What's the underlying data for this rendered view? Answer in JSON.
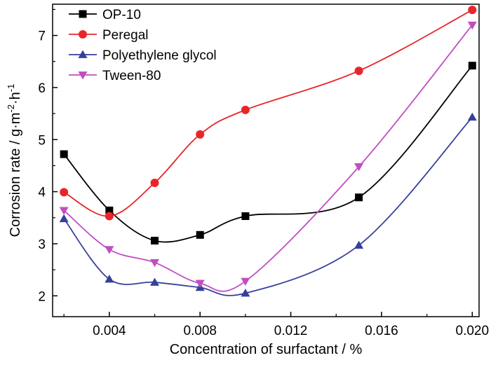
{
  "chart_data": {
    "type": "line",
    "xlabel": "Concentration of surfactant / %",
    "ylabel": {
      "prefix": "Corrosion rate / g·m",
      "exp1": "-2",
      "mid": "·h",
      "exp2": "-1"
    },
    "xlim": [
      0.0015,
      0.0203
    ],
    "ylim": [
      1.6,
      7.6
    ],
    "xticks": [
      0.004,
      0.008,
      0.012,
      0.016,
      0.02
    ],
    "xtick_labels": [
      "0.004",
      "0.008",
      "0.012",
      "0.016",
      "0.020"
    ],
    "yticks": [
      2,
      3,
      4,
      5,
      6,
      7
    ],
    "ytick_labels": [
      "2",
      "3",
      "4",
      "5",
      "6",
      "7"
    ],
    "grid": false,
    "legend_position": "top-left",
    "x": [
      0.002,
      0.004,
      0.006,
      0.008,
      0.01,
      0.015,
      0.02
    ],
    "series": [
      {
        "name": "OP-10",
        "color": "#000000",
        "marker": "square",
        "values": [
          4.72,
          3.64,
          3.06,
          3.17,
          3.53,
          3.89,
          6.42
        ]
      },
      {
        "name": "Peregal",
        "color": "#e8262a",
        "marker": "circle",
        "values": [
          3.99,
          3.53,
          4.17,
          5.1,
          5.57,
          6.32,
          7.49
        ]
      },
      {
        "name": "Polyethylene glycol",
        "color": "#363f9a",
        "marker": "triangle-up",
        "values": [
          3.48,
          2.32,
          2.26,
          2.16,
          2.05,
          2.97,
          5.43
        ]
      },
      {
        "name": "Tween-80",
        "color": "#c04ec0",
        "marker": "triangle-down",
        "values": [
          3.64,
          2.89,
          2.64,
          2.24,
          2.28,
          4.48,
          7.2
        ]
      }
    ]
  }
}
